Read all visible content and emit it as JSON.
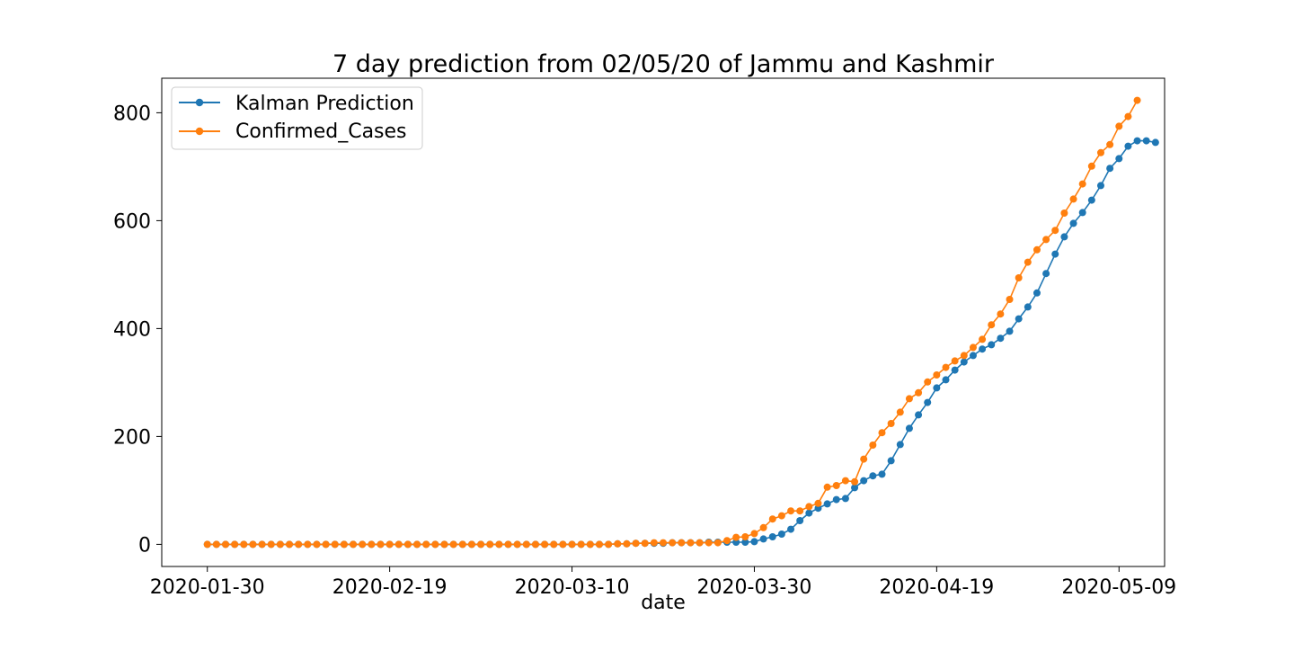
{
  "chart_data": {
    "type": "line",
    "title": "7 day prediction from 02/05/20 of Jammu and Kashmir",
    "xlabel": "date",
    "ylabel": "",
    "x_start": "2020-01-30",
    "x_end": "2020-05-09",
    "xlim": [
      "2020-01-25",
      "2020-05-14"
    ],
    "ylim": [
      -41,
      864
    ],
    "x_ticks": [
      "2020-01-30",
      "2020-02-19",
      "2020-03-10",
      "2020-03-30",
      "2020-04-19",
      "2020-05-09"
    ],
    "y_ticks": [
      0,
      200,
      400,
      600,
      800
    ],
    "grid": false,
    "legend_position": "top-left",
    "series": [
      {
        "name": "Kalman Prediction",
        "color": "#1f77b4",
        "marker": "circle",
        "values": [
          0,
          0,
          0,
          0,
          0,
          0,
          0,
          0,
          0,
          0,
          0,
          0,
          0,
          0,
          0,
          0,
          0,
          0,
          0,
          0,
          0,
          0,
          0,
          0,
          0,
          0,
          0,
          0,
          0,
          0,
          0,
          0,
          0,
          0,
          0,
          0,
          0,
          0,
          0,
          0,
          0,
          0,
          0,
          0,
          0,
          1,
          1,
          2,
          2,
          2,
          2,
          3,
          3,
          3,
          3,
          4,
          4,
          4,
          4,
          4,
          5,
          10,
          14,
          19,
          28,
          44,
          58,
          67,
          75,
          83,
          85,
          105,
          118,
          127,
          130,
          155,
          185,
          215,
          240,
          263,
          290,
          305,
          323,
          338,
          350,
          362,
          370,
          382,
          395,
          418,
          440,
          466,
          502,
          538,
          570,
          595,
          615,
          638,
          665,
          697,
          715,
          738,
          748,
          748,
          745
        ]
      },
      {
        "name": "Confirmed_Cases",
        "color": "#ff7f0e",
        "marker": "circle",
        "values": [
          0,
          0,
          0,
          0,
          0,
          0,
          0,
          0,
          0,
          0,
          0,
          0,
          0,
          0,
          0,
          0,
          0,
          0,
          0,
          0,
          0,
          0,
          0,
          0,
          0,
          0,
          0,
          0,
          0,
          0,
          0,
          0,
          0,
          0,
          0,
          0,
          0,
          0,
          0,
          0,
          0,
          0,
          0,
          0,
          0,
          1,
          1,
          2,
          2,
          3,
          3,
          3,
          3,
          3,
          3,
          3,
          3,
          7,
          13,
          14,
          20,
          31,
          47,
          53,
          62,
          62,
          70,
          76,
          106,
          109,
          118,
          116,
          158,
          184,
          207,
          224,
          245,
          270,
          281,
          301,
          314,
          328,
          340,
          350,
          365,
          380,
          407,
          427,
          454,
          494,
          523,
          546,
          565,
          582,
          614,
          640,
          668,
          701,
          726,
          741,
          775,
          793,
          823
        ]
      }
    ]
  }
}
